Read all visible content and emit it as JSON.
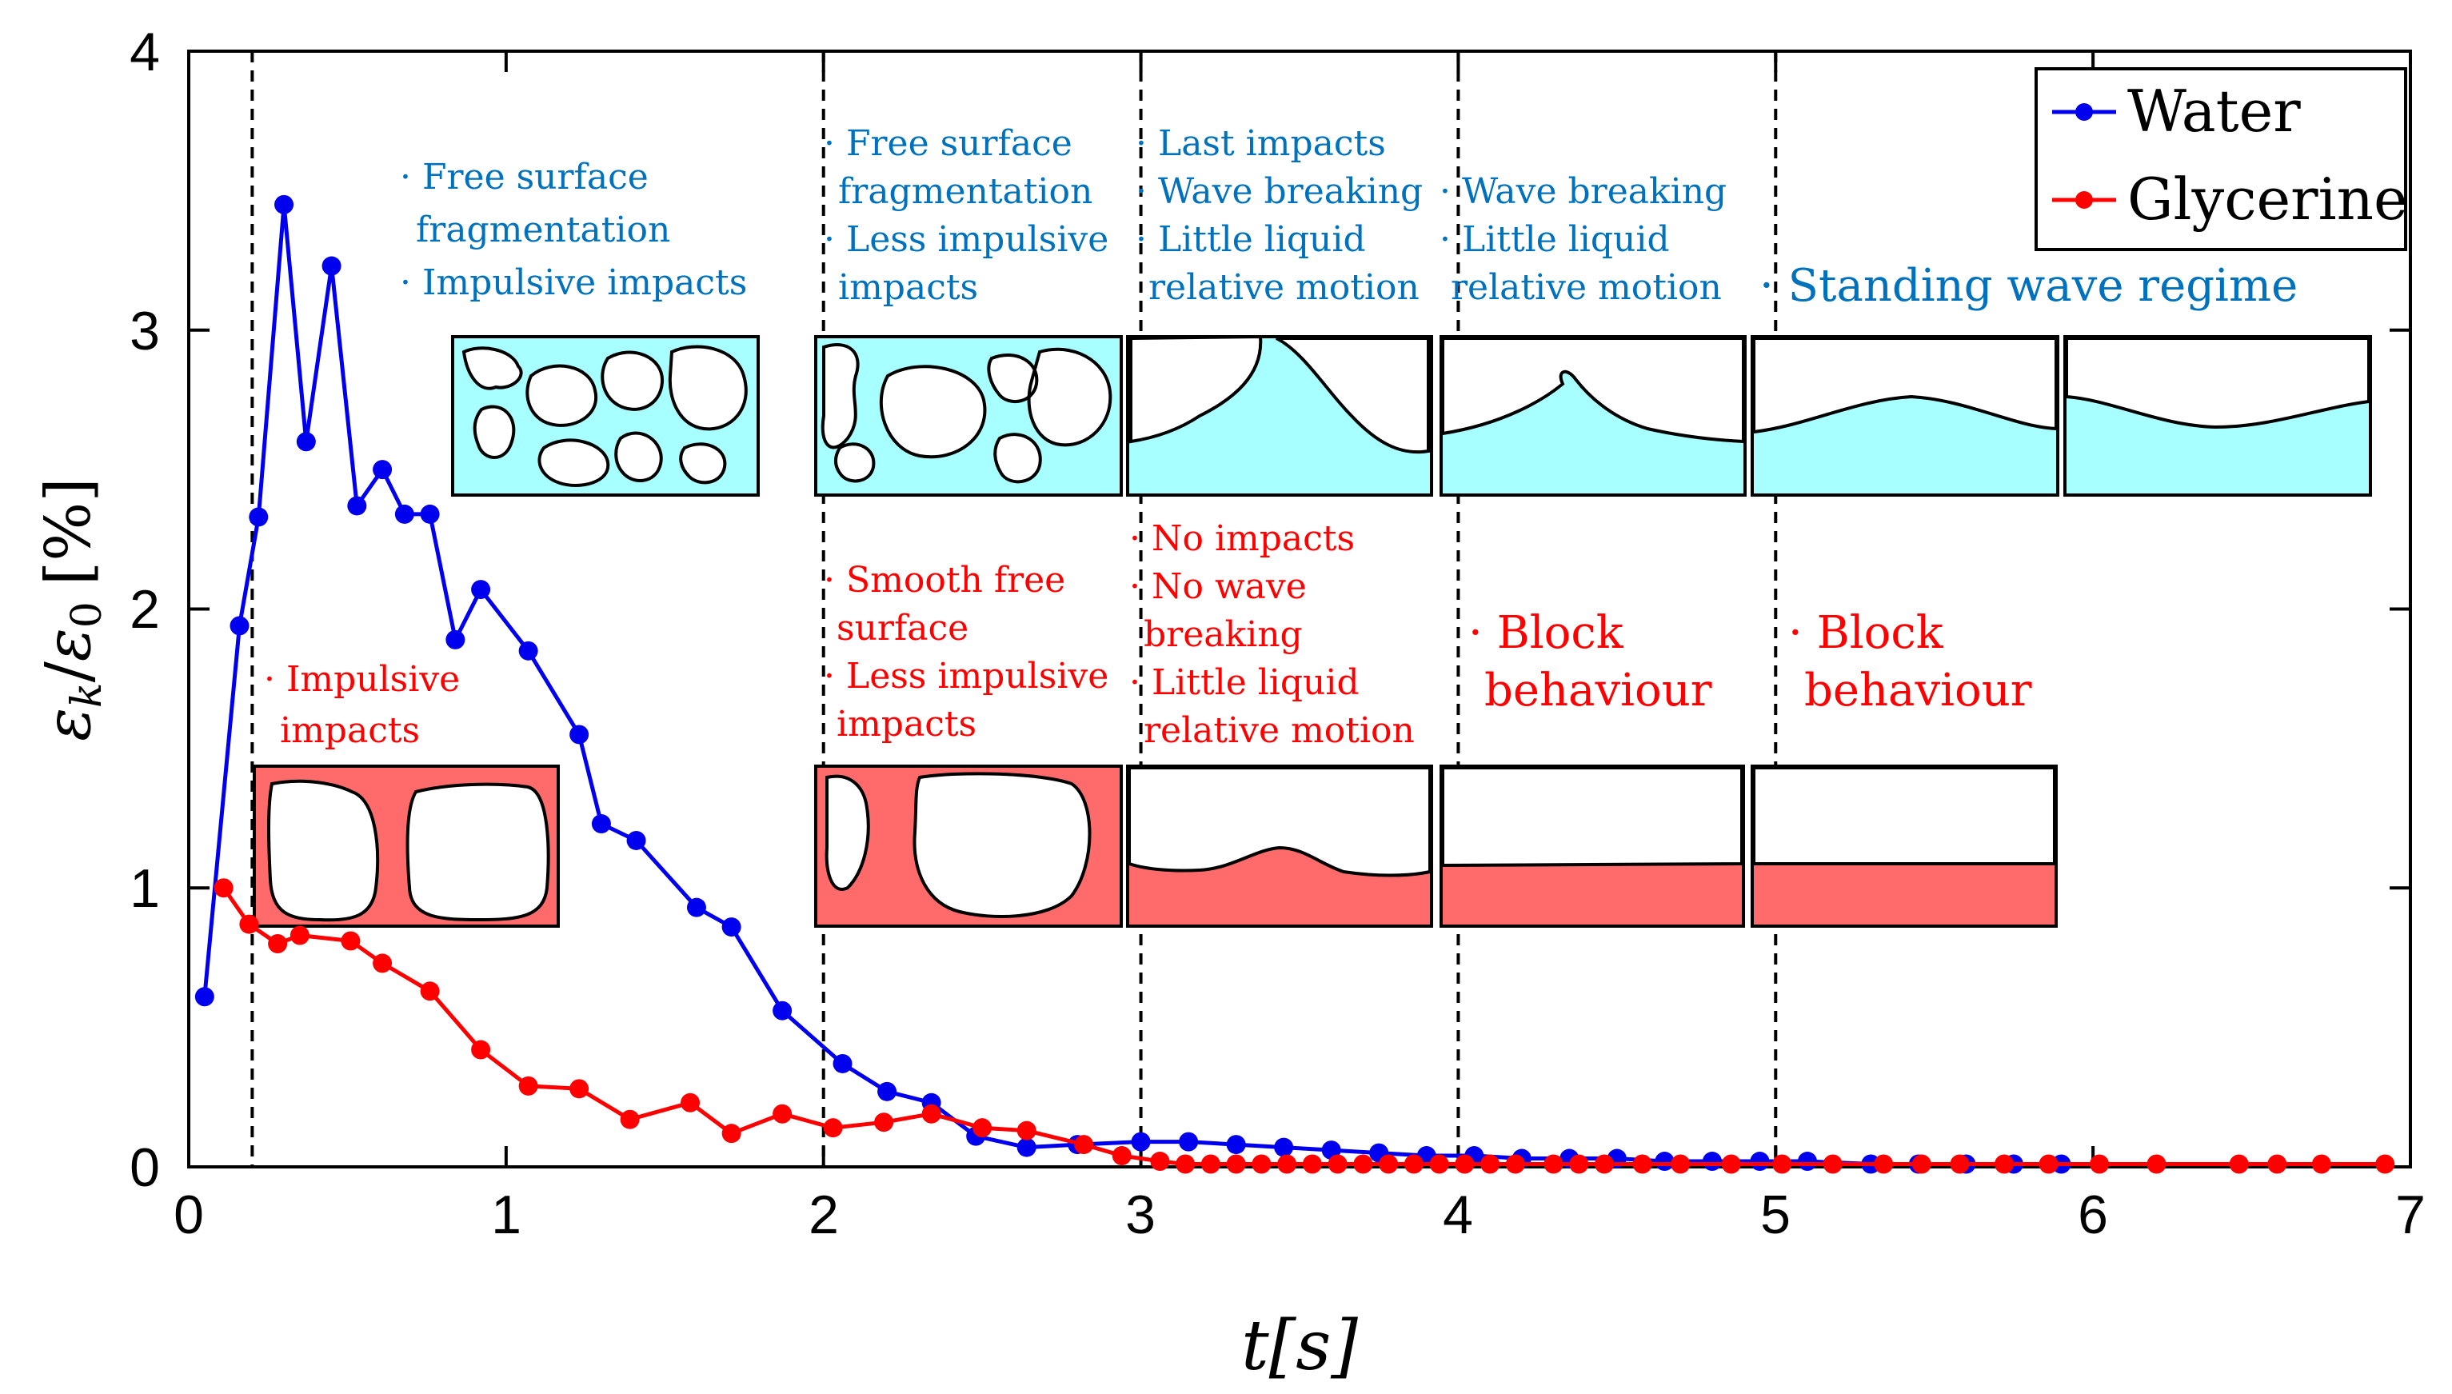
{
  "chart_data": {
    "type": "line",
    "xlim": [
      0,
      7
    ],
    "ylim": [
      0,
      4
    ],
    "xticks": [
      "0",
      "1",
      "2",
      "3",
      "4",
      "5",
      "6",
      "7"
    ],
    "yticks": [
      "0",
      "1",
      "2",
      "3",
      "4"
    ],
    "xlabel": "t[s]",
    "ylabel_parts": {
      "num": "ε",
      "num_sub": "k",
      "slash": "/",
      "den": "ε",
      "den_sub": "0",
      "unit": "[%]"
    },
    "phase_boundaries": [
      0.2,
      2,
      3,
      4,
      5
    ],
    "colors": {
      "water": "#0000ee",
      "glycerine": "#ff0000",
      "water_fill": "#a8ffff",
      "glycerine_fill": "#ff6b6b"
    },
    "series": [
      {
        "name": "Water",
        "color": "#0000ee",
        "x": [
          0.05,
          0.16,
          0.22,
          0.3,
          0.37,
          0.45,
          0.53,
          0.61,
          0.68,
          0.76,
          0.84,
          0.92,
          1.07,
          1.23,
          1.3,
          1.41,
          1.6,
          1.71,
          1.87,
          2.06,
          2.2,
          2.34,
          2.48,
          2.64,
          2.8,
          3.0,
          3.15,
          3.3,
          3.45,
          3.6,
          3.75,
          3.9,
          4.05,
          4.2,
          4.35,
          4.5,
          4.65,
          4.8,
          4.95,
          5.1,
          5.3,
          5.45,
          5.6,
          5.75,
          5.9
        ],
        "values": [
          0.61,
          1.94,
          2.33,
          3.45,
          2.6,
          3.23,
          2.37,
          2.5,
          2.34,
          2.34,
          1.89,
          2.07,
          1.85,
          1.55,
          1.23,
          1.17,
          0.93,
          0.86,
          0.56,
          0.37,
          0.27,
          0.23,
          0.11,
          0.07,
          0.08,
          0.09,
          0.09,
          0.08,
          0.07,
          0.06,
          0.05,
          0.04,
          0.04,
          0.03,
          0.03,
          0.03,
          0.02,
          0.02,
          0.02,
          0.02,
          0.01,
          0.01,
          0.01,
          0.01,
          0.01
        ]
      },
      {
        "name": "Glycerine",
        "color": "#ff0000",
        "x": [
          0.11,
          0.19,
          0.28,
          0.35,
          0.51,
          0.61,
          0.76,
          0.92,
          1.07,
          1.23,
          1.39,
          1.58,
          1.71,
          1.87,
          2.03,
          2.19,
          2.34,
          2.5,
          2.64,
          2.82,
          2.94,
          3.06,
          3.14,
          3.22,
          3.3,
          3.38,
          3.46,
          3.54,
          3.62,
          3.7,
          3.78,
          3.86,
          3.94,
          4.02,
          4.1,
          4.18,
          4.3,
          4.38,
          4.46,
          4.58,
          4.7,
          4.86,
          5.02,
          5.18,
          5.34,
          5.46,
          5.58,
          5.72,
          5.86,
          6.02,
          6.2,
          6.46,
          6.58,
          6.72,
          6.92
        ],
        "values": [
          1.0,
          0.87,
          0.8,
          0.83,
          0.81,
          0.73,
          0.63,
          0.42,
          0.29,
          0.28,
          0.17,
          0.23,
          0.12,
          0.19,
          0.14,
          0.16,
          0.19,
          0.14,
          0.13,
          0.08,
          0.04,
          0.02,
          0.01,
          0.01,
          0.01,
          0.01,
          0.01,
          0.01,
          0.01,
          0.01,
          0.01,
          0.01,
          0.01,
          0.01,
          0.01,
          0.01,
          0.01,
          0.01,
          0.01,
          0.01,
          0.01,
          0.01,
          0.01,
          0.01,
          0.01,
          0.01,
          0.01,
          0.01,
          0.01,
          0.01,
          0.01,
          0.01,
          0.01,
          0.01,
          0.01
        ]
      }
    ],
    "legend": {
      "position": "top-right",
      "entries": [
        "Water",
        "Glycerine"
      ]
    },
    "annotations_water": [
      [
        "· Free surface",
        "fragmentation",
        "· Impulsive impacts"
      ],
      [
        "· Free surface",
        "fragmentation",
        "· Less impulsive",
        "impacts"
      ],
      [
        "· Last impacts",
        "· Wave breaking",
        "· Little liquid",
        "relative motion"
      ],
      [
        "· Wave breaking",
        "· Little liquid",
        "relative motion"
      ],
      [
        "· Standing wave regime"
      ]
    ],
    "annotations_glycerine": [
      [
        "· Impulsive",
        "impacts"
      ],
      [
        "· Smooth free",
        "surface",
        "· Less impulsive",
        "impacts"
      ],
      [
        "· No impacts",
        "· No wave",
        "breaking",
        "· Little liquid",
        "relative motion"
      ],
      [
        "· Block",
        "behaviour"
      ],
      [
        "· Block",
        "behaviour"
      ]
    ]
  }
}
